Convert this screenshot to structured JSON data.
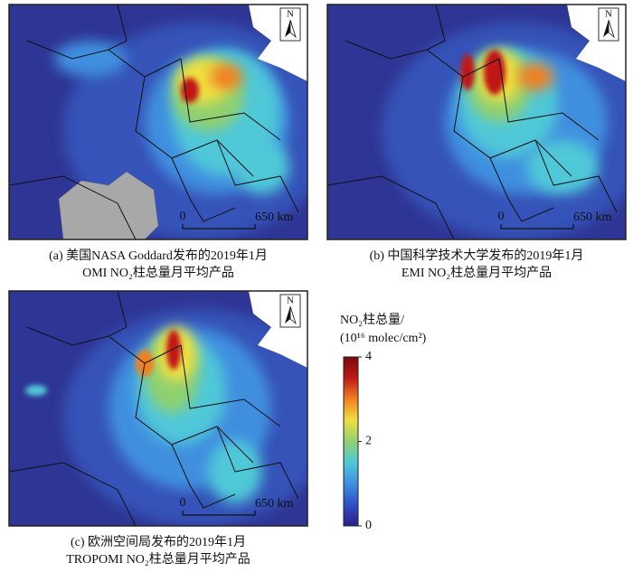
{
  "panels": [
    {
      "caption": [
        "(a)  美国NASA Goddard发布的2019年1月",
        "OMI NO₂柱总量月平均产品"
      ],
      "north": "N",
      "scale_bar": {
        "start": "0",
        "end": "650 km"
      }
    },
    {
      "caption": [
        "(b)  中国科学技术大学发布的2019年1月",
        "EMI NO₂柱总量月平均产品"
      ],
      "north": "N",
      "scale_bar": {
        "start": "0",
        "end": "650 km"
      }
    },
    {
      "caption": [
        "(c)  欧洲空间局发布的2019年1月",
        "TROPOMI NO₂柱总量月平均产品"
      ],
      "north": "N",
      "scale_bar": {
        "start": "0",
        "end": "650 km"
      }
    }
  ],
  "colorbar": {
    "title": [
      "NO₂柱总量/",
      "(10¹⁶ molec/cm²)"
    ],
    "ylim": [
      0,
      4
    ],
    "yticks": [
      0,
      2,
      4
    ],
    "colormap": [
      "#2a1f8a",
      "#2f4fc8",
      "#3f8fdf",
      "#4fc8d8",
      "#8fd070",
      "#f0e040",
      "#f08020",
      "#c01818",
      "#7a0a0a"
    ]
  }
}
